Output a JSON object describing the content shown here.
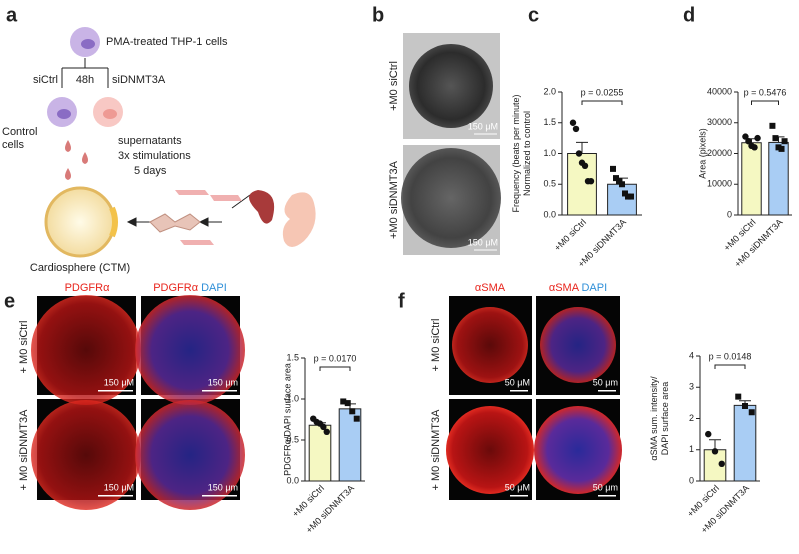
{
  "chart_data": [
    {
      "type": "bar",
      "categories": [
        "+M0 siCtrl",
        "+M0 siDNMT3A"
      ],
      "values": [
        1.0,
        0.5
      ],
      "errors": [
        0.18,
        0.1
      ],
      "points": [
        [
          1.5,
          1.4,
          1.0,
          0.85,
          0.8,
          0.55,
          0.55
        ],
        [
          0.75,
          0.6,
          0.55,
          0.5,
          0.35,
          0.3,
          0.3
        ]
      ],
      "colors": [
        "#f5f8c2",
        "#a9cdf4"
      ],
      "ylabel": [
        "Frequency (beats per minute)",
        "Normalized to control"
      ],
      "annotation": "p = 0.0255",
      "ylim": [
        0,
        2
      ],
      "yticks": [
        {
          "value": 0,
          "label": "0.0"
        },
        {
          "value": 0.5,
          "label": "0.5"
        },
        {
          "value": 1,
          "label": "1.0"
        },
        {
          "value": 1.5,
          "label": "1.5"
        },
        {
          "value": 2,
          "label": "2.0"
        }
      ]
    },
    {
      "type": "bar",
      "categories": [
        "+M0 siCtrl",
        "+M0 siDNMT3A"
      ],
      "values": [
        23500,
        23600
      ],
      "errors": [
        1300,
        1800
      ],
      "points": [
        [
          25500,
          24000,
          22500,
          22000,
          25000
        ],
        [
          29000,
          25000,
          22000,
          21500,
          24000
        ]
      ],
      "colors": [
        "#f5f8c2",
        "#a9cdf4"
      ],
      "ylabel": [
        "Area (pixels)"
      ],
      "annotation": "p = 0.5476",
      "ylim": [
        0,
        40000
      ],
      "yticks": [
        0,
        10000,
        20000,
        30000,
        40000
      ]
    },
    {
      "type": "bar",
      "categories": [
        "+M0 siCtrl",
        "+M0 siDNMT3A"
      ],
      "values": [
        0.68,
        0.88
      ],
      "errors": [
        0.03,
        0.06
      ],
      "points": [
        [
          0.76,
          0.72,
          0.7,
          0.66,
          0.6
        ],
        [
          0.97,
          0.95,
          0.85,
          0.76
        ]
      ],
      "colors": [
        "#f5f8c2",
        "#a9cdf4"
      ],
      "ylabel": [
        "PDGFRα/DAPI surface area"
      ],
      "annotation": "p = 0.0170",
      "ylim": [
        0,
        1.5
      ],
      "yticks": [
        {
          "value": 0,
          "label": "0.0"
        },
        {
          "value": 0.5,
          "label": "0.5"
        },
        {
          "value": 1,
          "label": "1.0"
        },
        {
          "value": 1.5,
          "label": "1.5"
        }
      ]
    },
    {
      "type": "bar",
      "categories": [
        "+M0 siCtrl",
        "+M0 siDNMT3A"
      ],
      "values": [
        1.0,
        2.42
      ],
      "errors": [
        0.32,
        0.15
      ],
      "points": [
        [
          1.5,
          0.95,
          0.55
        ],
        [
          2.7,
          2.4,
          2.2
        ]
      ],
      "colors": [
        "#f5f8c2",
        "#a9cdf4"
      ],
      "ylabel": [
        "αSMA sum. intensity/",
        "DAPI surface area"
      ],
      "annotation": "p = 0.0148",
      "ylim": [
        0,
        4
      ],
      "yticks": [
        0,
        1,
        2,
        3,
        4
      ]
    }
  ],
  "panels": {
    "a": {
      "letter": "a",
      "source": "PMA-treated THP-1 cells",
      "left": "siCtrl",
      "time": "48h",
      "right": "siDNMT3A",
      "control": [
        "Control",
        "cells"
      ],
      "treatment": [
        "supernatants",
        "3x stimulations",
        "5 days"
      ],
      "product": "Cardiosphere (CTM)"
    },
    "b": {
      "letter": "b",
      "rows": [
        "+M0 siCtrl",
        "+M0 siDNMT3A"
      ],
      "scales": [
        "150 μM",
        "150 μM"
      ]
    },
    "c": {
      "letter": "c"
    },
    "d": {
      "letter": "d"
    },
    "e": {
      "letter": "e",
      "stain": "PDGFRα",
      "dapi": "DAPI",
      "rows": [
        "+ M0 siCtrl",
        "+ M0 siDNMT3A"
      ],
      "scales": [
        "150 μM",
        "150 μm",
        "150 μM",
        "150 μm"
      ]
    },
    "f": {
      "letter": "f",
      "stain": "αSMA",
      "dapi": "DAPI",
      "rows": [
        "+ M0 siCtrl",
        "+ M0 siDNMT3A"
      ],
      "scales": [
        "50 μM",
        "50 μm",
        "50 μM",
        "50 μm"
      ]
    }
  }
}
